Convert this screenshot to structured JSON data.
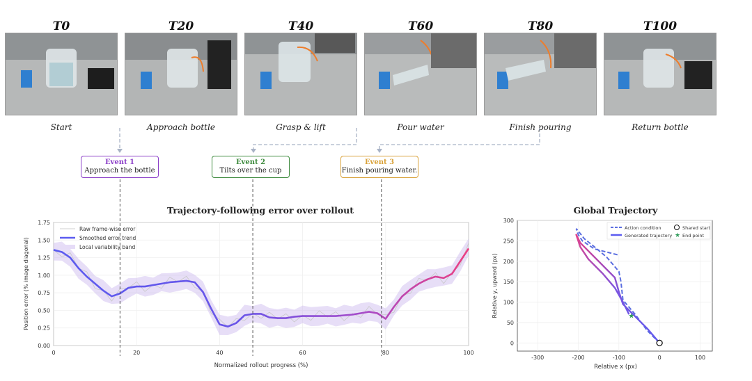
{
  "frames": [
    {
      "title": "T0",
      "caption": "Start"
    },
    {
      "title": "T20",
      "caption": "Approach bottle"
    },
    {
      "title": "T40",
      "caption": "Grasp & lift"
    },
    {
      "title": "T60",
      "caption": "Pour water"
    },
    {
      "title": "T80",
      "caption": "Finish pouring"
    },
    {
      "title": "T100",
      "caption": "Return bottle"
    }
  ],
  "events": [
    {
      "title": "Event 1",
      "text": "Approach the bottle",
      "color": "#8b3ec8"
    },
    {
      "title": "Event 2",
      "text": "Tilts over the cup",
      "color": "#3d8a3d"
    },
    {
      "title": "Event 3",
      "text": "Finish pouring water.",
      "color": "#d9a23a"
    }
  ],
  "chart_data": [
    {
      "type": "line",
      "title": "Trajectory-following error over rollout",
      "xlabel": "Normalized rollout progress (%)",
      "ylabel": "Position error (% image diagonal)",
      "xlim": [
        0,
        100
      ],
      "ylim": [
        0,
        1.75
      ],
      "xticks": [
        "0",
        "20",
        "40",
        "60",
        "80",
        "100"
      ],
      "yticks": [
        "0.00",
        "0.25",
        "0.50",
        "0.75",
        "1.00",
        "1.25",
        "1.50",
        "1.75"
      ],
      "legend": [
        "Raw frame-wise error",
        "Smoothed error trend",
        "Local variability band"
      ],
      "legend_position": "top-left",
      "event_lines_x": [
        16,
        48,
        79
      ],
      "colors": {
        "start": "#5b5bf0",
        "end": "#ec3f82",
        "band": "#c9b5ee",
        "raw": "#c8c8c8"
      },
      "series": [
        {
          "name": "Smoothed error trend",
          "x": [
            0,
            2,
            4,
            6,
            8,
            10,
            12,
            14,
            16,
            18,
            20,
            22,
            24,
            26,
            28,
            30,
            32,
            34,
            36,
            38,
            40,
            42,
            44,
            46,
            48,
            50,
            52,
            54,
            56,
            58,
            60,
            62,
            64,
            66,
            68,
            70,
            72,
            74,
            76,
            78,
            80,
            82,
            84,
            86,
            88,
            90,
            92,
            94,
            96,
            98,
            100
          ],
          "y": [
            1.36,
            1.33,
            1.25,
            1.1,
            0.98,
            0.88,
            0.78,
            0.7,
            0.74,
            0.82,
            0.84,
            0.84,
            0.86,
            0.88,
            0.9,
            0.91,
            0.92,
            0.9,
            0.76,
            0.52,
            0.3,
            0.27,
            0.32,
            0.43,
            0.45,
            0.45,
            0.4,
            0.39,
            0.39,
            0.41,
            0.42,
            0.42,
            0.42,
            0.42,
            0.42,
            0.43,
            0.44,
            0.46,
            0.48,
            0.46,
            0.38,
            0.55,
            0.7,
            0.8,
            0.88,
            0.94,
            0.98,
            0.96,
            1.02,
            1.2,
            1.38
          ]
        }
      ]
    },
    {
      "type": "line",
      "title": "Global Trajectory",
      "xlabel": "Relative x (px)",
      "ylabel": "Relative y, upward (px)",
      "xlim": [
        -350,
        130
      ],
      "ylim": [
        -20,
        300
      ],
      "xticks": [
        "-300",
        "-200",
        "-100",
        "0",
        "100"
      ],
      "yticks": [
        "0",
        "50",
        "100",
        "150",
        "200",
        "250",
        "300"
      ],
      "legend": [
        "Action condition",
        "Shared start",
        "Generated trajectory",
        "End point"
      ],
      "legend_position": "top-right",
      "series": [
        {
          "name": "Action condition",
          "x": [
            0,
            -30,
            -60,
            -90,
            -95,
            -100,
            -130,
            -160,
            -185,
            -205,
            -200,
            -190,
            -160,
            -100
          ],
          "y": [
            0,
            30,
            70,
            105,
            150,
            175,
            210,
            235,
            255,
            280,
            265,
            250,
            230,
            215
          ]
        },
        {
          "name": "Generated trajectory",
          "x": [
            0,
            -30,
            -65,
            -90,
            -100,
            -110,
            -140,
            -170,
            -195,
            -205,
            -195,
            -175,
            -140,
            -110,
            -90,
            -75
          ],
          "y": [
            0,
            35,
            70,
            95,
            125,
            160,
            190,
            220,
            245,
            265,
            235,
            205,
            170,
            135,
            100,
            70
          ]
        }
      ],
      "points": [
        {
          "name": "Shared start",
          "x": 0,
          "y": 0
        },
        {
          "name": "End point",
          "x": -70,
          "y": 68
        }
      ]
    }
  ]
}
